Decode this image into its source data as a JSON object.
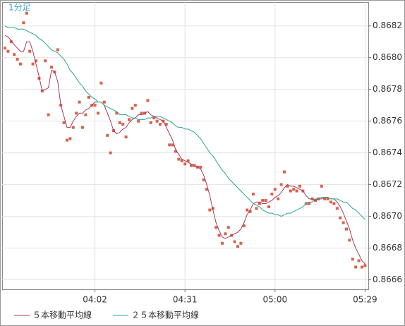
{
  "chart_data": {
    "type": "line",
    "title": "1分足",
    "grid": true,
    "legend": "bottom-left",
    "categories": [
      null,
      null,
      null,
      null,
      null,
      null,
      null,
      null,
      null,
      null,
      null,
      null,
      null,
      null,
      null,
      null,
      null,
      null,
      null,
      null,
      null,
      null,
      null,
      null,
      null,
      null,
      null,
      null,
      null,
      "04:02",
      null,
      null,
      null,
      null,
      null,
      null,
      null,
      null,
      null,
      null,
      null,
      null,
      null,
      null,
      null,
      null,
      null,
      null,
      null,
      null,
      null,
      null,
      null,
      null,
      null,
      null,
      null,
      null,
      "04:31",
      null,
      null,
      null,
      null,
      null,
      null,
      null,
      null,
      null,
      null,
      null,
      null,
      null,
      null,
      null,
      null,
      null,
      null,
      null,
      null,
      null,
      null,
      null,
      null,
      null,
      null,
      null,
      null,
      "05:00",
      null,
      null,
      null,
      null,
      null,
      null,
      null,
      null,
      null,
      null,
      null,
      null,
      null,
      null,
      null,
      null,
      null,
      null,
      null,
      null,
      null,
      null,
      null,
      null,
      null,
      null,
      null,
      null,
      "05:29"
    ],
    "ylim": [
      0.86654,
      0.86835
    ],
    "yticks": [
      0.8666,
      0.8668,
      {
        "value": 0.867,
        "label": "0.8670"
      },
      0.8672,
      0.8674,
      0.8676,
      0.8678,
      {
        "value": 0.868,
        "label": "0.8680"
      },
      0.8682
    ],
    "series": [
      {
        "color": "#d9614a",
        "marker": "square",
        "values": [
          0.86806,
          0.86804,
          0.8681,
          0.86802,
          0.86799,
          0.86796,
          0.86822,
          0.86828,
          0.86804,
          0.86796,
          0.86798,
          0.86787,
          0.86779,
          0.86798,
          0.86764,
          0.86794,
          0.86791,
          0.86805,
          0.8677,
          0.86759,
          0.86748,
          0.86749,
          0.86756,
          0.86765,
          0.86772,
          0.86756,
          0.86764,
          0.86775,
          0.8677,
          0.8677,
          0.86765,
          0.86784,
          0.86772,
          0.86751,
          0.8674,
          0.86754,
          0.86765,
          0.86759,
          0.86758,
          0.8675,
          0.86761,
          0.86768,
          0.8677,
          0.8676,
          0.86765,
          0.86765,
          0.86773,
          0.86759,
          0.86762,
          0.8676,
          0.86758,
          0.8676,
          0.86758,
          0.86745,
          0.86745,
          0.86741,
          0.86736,
          0.86735,
          0.86733,
          0.86735,
          0.86732,
          0.86732,
          0.86731,
          0.86731,
          0.86723,
          0.86717,
          0.86704,
          0.86705,
          0.86693,
          0.86688,
          0.86683,
          0.86689,
          0.86693,
          0.86688,
          0.86684,
          0.86681,
          0.86683,
          0.86694,
          0.86704,
          0.86703,
          0.86714,
          0.86705,
          0.86708,
          0.8671,
          0.8671,
          0.86706,
          0.86714,
          0.86717,
          0.86711,
          0.8672,
          0.86728,
          0.86719,
          0.86716,
          0.86717,
          0.86716,
          0.86719,
          0.86716,
          0.86708,
          0.86708,
          0.86711,
          0.8671,
          0.86711,
          0.86719,
          0.86711,
          0.86711,
          0.86709,
          0.86708,
          0.86705,
          0.86699,
          0.86696,
          0.86692,
          0.86685,
          0.86673,
          0.86668,
          0.86672,
          0.86668,
          0.86669
        ]
      },
      {
        "name": "５本移動平均線",
        "color": "#a8385e",
        "values": [
          0.86814,
          0.86813,
          0.86811,
          0.86808,
          0.86806,
          0.86804,
          0.86804,
          0.8681,
          0.8681,
          0.86804,
          0.86796,
          0.86788,
          0.86779,
          0.8678,
          0.86781,
          0.86792,
          0.86791,
          0.86785,
          0.8677,
          0.86763,
          0.86756,
          0.86756,
          0.8676,
          0.86763,
          0.86765,
          0.86765,
          0.86767,
          0.86768,
          0.8677,
          0.86772,
          0.86772,
          0.86772,
          0.8677,
          0.86765,
          0.8676,
          0.86754,
          0.86752,
          0.86753,
          0.86755,
          0.86756,
          0.86759,
          0.86761,
          0.86762,
          0.86764,
          0.86764,
          0.86765,
          0.86766,
          0.86764,
          0.86763,
          0.86762,
          0.86761,
          0.8676,
          0.86756,
          0.86752,
          0.86748,
          0.86742,
          0.86739,
          0.86736,
          0.86735,
          0.86734,
          0.86733,
          0.86732,
          0.86731,
          0.8673,
          0.86726,
          0.8672,
          0.86713,
          0.86704,
          0.86696,
          0.86691,
          0.86687,
          0.86686,
          0.86687,
          0.86688,
          0.86689,
          0.8669,
          0.86692,
          0.86696,
          0.86701,
          0.86704,
          0.86708,
          0.86709,
          0.86709,
          0.86708,
          0.86708,
          0.86709,
          0.8671,
          0.86712,
          0.86713,
          0.86715,
          0.86718,
          0.8672,
          0.86719,
          0.86719,
          0.86718,
          0.86717,
          0.86716,
          0.86713,
          0.86711,
          0.86711,
          0.8671,
          0.86711,
          0.86711,
          0.86712,
          0.86712,
          0.86711,
          0.86711,
          0.86709,
          0.86706,
          0.86702,
          0.86697,
          0.86692,
          0.86685,
          0.8668,
          0.86676,
          0.86672,
          0.8667
        ]
      },
      {
        "name": "２５本移動平均線",
        "color": "#26a589",
        "values": [
          0.8682,
          0.86819,
          0.86819,
          0.86819,
          0.86818,
          0.86818,
          0.86818,
          0.86817,
          0.86816,
          0.86815,
          0.86814,
          0.86812,
          0.86811,
          0.86809,
          0.86807,
          0.86805,
          0.86804,
          0.86803,
          0.86801,
          0.86799,
          0.86796,
          0.86792,
          0.8679,
          0.86787,
          0.86784,
          0.86782,
          0.86779,
          0.86777,
          0.86775,
          0.86774,
          0.86772,
          0.86772,
          0.8677,
          0.86769,
          0.86768,
          0.86767,
          0.86766,
          0.86764,
          0.86764,
          0.86764,
          0.86763,
          0.86762,
          0.86762,
          0.86761,
          0.86761,
          0.86761,
          0.86762,
          0.86762,
          0.86763,
          0.86763,
          0.86763,
          0.86762,
          0.86761,
          0.8676,
          0.86759,
          0.86757,
          0.86756,
          0.86756,
          0.86755,
          0.86755,
          0.86754,
          0.86753,
          0.86751,
          0.86749,
          0.86746,
          0.86743,
          0.8674,
          0.86738,
          0.86735,
          0.86732,
          0.86729,
          0.86727,
          0.86724,
          0.86722,
          0.8672,
          0.86718,
          0.86716,
          0.86714,
          0.86712,
          0.8671,
          0.86708,
          0.86707,
          0.86706,
          0.86704,
          0.86703,
          0.86702,
          0.86702,
          0.86701,
          0.86701,
          0.867,
          0.86701,
          0.86702,
          0.86702,
          0.86703,
          0.86704,
          0.86705,
          0.86706,
          0.86708,
          0.86709,
          0.86709,
          0.86711,
          0.86711,
          0.86712,
          0.86712,
          0.86712,
          0.86711,
          0.86711,
          0.86711,
          0.8671,
          0.86709,
          0.86709,
          0.86707,
          0.86705,
          0.86704,
          0.86702,
          0.867,
          0.86698
        ]
      }
    ]
  }
}
